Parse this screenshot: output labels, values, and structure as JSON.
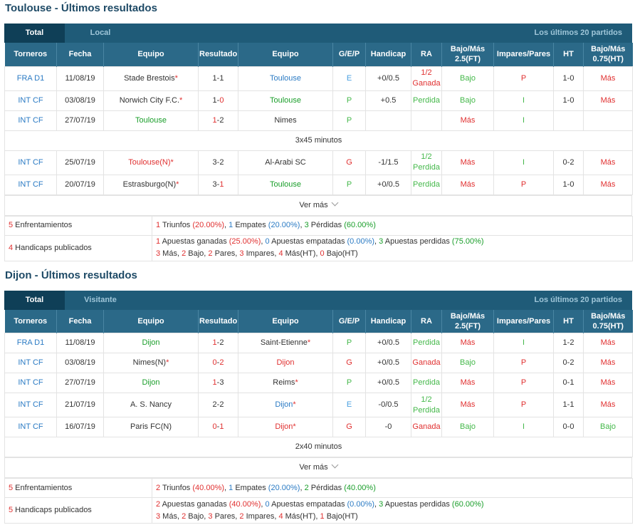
{
  "sections": [
    {
      "title": "Toulouse - Últimos resultados",
      "tab_total": "Total",
      "tab_other": "Local",
      "last_label": "Los últimos 20 partidos",
      "headers": [
        "Torneros",
        "Fecha",
        "Equipo",
        "Resultado",
        "Equipo",
        "G/E/P",
        "Handicap",
        "RA",
        "Bajo/Más 2.5(FT)",
        "Impares/Pares",
        "HT",
        "Bajo/Más 0.75(HT)"
      ],
      "more_label": "Ver más",
      "summary": {
        "enf_count": "5",
        "enf_label": " Enfrentamientos",
        "w": "1",
        "w_label": " Triunfos ",
        "w_pct": "(20.00%)",
        "d": "1",
        "d_label": " Empates ",
        "d_pct": "(20.00%)",
        "l": "3",
        "l_label": " Pérdidas ",
        "l_pct": "(60.00%)",
        "hc_count": "4",
        "hc_label": " Handicaps publicados",
        "aw": "1",
        "aw_label": " Apuestas ganadas ",
        "aw_pct": "(25.00%)",
        "ad": "0",
        "ad_label": " Apuestas empatadas ",
        "ad_pct": "(0.00%)",
        "al": "3",
        "al_label": " Apuestas perdidas ",
        "al_pct": "(75.00%)",
        "m": "3",
        "m_label": " Más, ",
        "b": "2",
        "b_label": " Bajo, ",
        "p": "2",
        "p_label": " Pares, ",
        "i": "3",
        "i_label": " Impares, ",
        "mht": "4",
        "mht_label": " Más(HT), ",
        "bht": "0",
        "bht_label": " Bajo(HT)"
      }
    },
    {
      "title": "Dijon - Últimos resultados",
      "tab_total": "Total",
      "tab_other": "Visitante",
      "last_label": "Los últimos 20 partidos",
      "headers": [
        "Torneros",
        "Fecha",
        "Equipo",
        "Resultado",
        "Equipo",
        "G/E/P",
        "Handicap",
        "RA",
        "Bajo/Más 2.5(FT)",
        "Impares/Pares",
        "HT",
        "Bajo/Más 0.75(HT)"
      ],
      "more_label": "Ver más",
      "summary": {
        "enf_count": "5",
        "enf_label": " Enfrentamientos",
        "w": "2",
        "w_label": " Triunfos ",
        "w_pct": "(40.00%)",
        "d": "1",
        "d_label": " Empates ",
        "d_pct": "(20.00%)",
        "l": "2",
        "l_label": " Pérdidas ",
        "l_pct": "(40.00%)",
        "hc_count": "5",
        "hc_label": " Handicaps publicados",
        "aw": "2",
        "aw_label": " Apuestas ganadas ",
        "aw_pct": "(40.00%)",
        "ad": "0",
        "ad_label": " Apuestas empatadas ",
        "ad_pct": "(0.00%)",
        "al": "3",
        "al_label": " Apuestas perdidas ",
        "al_pct": "(60.00%)",
        "m": "3",
        "m_label": " Más, ",
        "b": "2",
        "b_label": " Bajo, ",
        "p": "3",
        "p_label": " Pares, ",
        "i": "2",
        "i_label": " Impares, ",
        "mht": "4",
        "mht_label": " Más(HT), ",
        "bht": "1",
        "bht_label": " Bajo(HT)"
      }
    }
  ],
  "toulouse_rows": [
    {
      "league": "FRA D1",
      "date": "11/08/19",
      "home": "Stade Brestois",
      "score_h": "1",
      "score_a": "1",
      "away": "Toulouse",
      "gep": "E",
      "hc": "+0/0.5",
      "ra1": "1/2",
      "ra2": "Ganada",
      "ou": "Bajo",
      "op": "P",
      "ht": "1-0",
      "ouht": "Más"
    },
    {
      "league": "INT CF",
      "date": "03/08/19",
      "home": "Norwich City F.C.",
      "score_h": "1",
      "score_a": "0",
      "away": "Toulouse",
      "gep": "P",
      "hc": "+0.5",
      "ra1": "Perdida",
      "ou": "Bajo",
      "op": "I",
      "ht": "1-0",
      "ouht": "Más"
    },
    {
      "league": "INT CF",
      "date": "27/07/19",
      "home": "Toulouse",
      "score_h": "1",
      "score_a": "2",
      "away": "Nimes",
      "gep": "P",
      "hc": "",
      "ra1": "",
      "ou": "Más",
      "op": "I",
      "ht": "",
      "ouht": ""
    },
    {
      "note": "3x45 minutos"
    },
    {
      "league": "INT CF",
      "date": "25/07/19",
      "home": "Toulouse(N)",
      "score_h": "3",
      "score_a": "2",
      "away": "Al-Arabi SC",
      "gep": "G",
      "hc": "-1/1.5",
      "ra1": "1/2",
      "ra2": "Perdida",
      "ou": "Más",
      "op": "I",
      "ht": "0-2",
      "ouht": "Más"
    },
    {
      "league": "INT CF",
      "date": "20/07/19",
      "home": "Estrasburgo(N)",
      "score_h": "3",
      "score_a": "1",
      "away": "Toulouse",
      "gep": "P",
      "hc": "+0/0.5",
      "ra1": "Perdida",
      "ou": "Más",
      "op": "P",
      "ht": "1-0",
      "ouht": "Más"
    }
  ],
  "dijon_rows": [
    {
      "league": "FRA D1",
      "date": "11/08/19",
      "home": "Dijon",
      "score_h": "1",
      "score_a": "2",
      "away": "Saint-Etienne",
      "gep": "P",
      "hc": "+0/0.5",
      "ra1": "Perdida",
      "ou": "Más",
      "op": "I",
      "ht": "1-2",
      "ouht": "Más"
    },
    {
      "league": "INT CF",
      "date": "03/08/19",
      "home": "Nimes(N)",
      "score_h": "0",
      "score_a": "2",
      "away": "Dijon",
      "gep": "G",
      "hc": "+0/0.5",
      "ra1": "Ganada",
      "ou": "Bajo",
      "op": "P",
      "ht": "0-2",
      "ouht": "Más"
    },
    {
      "league": "INT CF",
      "date": "27/07/19",
      "home": "Dijon",
      "score_h": "1",
      "score_a": "3",
      "away": "Reims",
      "gep": "P",
      "hc": "+0/0.5",
      "ra1": "Perdida",
      "ou": "Más",
      "op": "P",
      "ht": "0-1",
      "ouht": "Más"
    },
    {
      "league": "INT CF",
      "date": "21/07/19",
      "home": "A. S. Nancy",
      "score_h": "2",
      "score_a": "2",
      "away": "Dijon",
      "gep": "E",
      "hc": "-0/0.5",
      "ra1": "1/2",
      "ra2": "Perdida",
      "ou": "Más",
      "op": "P",
      "ht": "1-1",
      "ouht": "Más"
    },
    {
      "league": "INT CF",
      "date": "16/07/19",
      "home": "Paris FC(N)",
      "score_h": "0",
      "score_a": "1",
      "away": "Dijon",
      "gep": "G",
      "hc": "-0",
      "ra1": "Ganada",
      "ou": "Bajo",
      "op": "I",
      "ht": "0-0",
      "ouht": "Bajo"
    },
    {
      "note": "2x40 minutos"
    }
  ],
  "colors": {
    "header_dark": "#1f5b78",
    "tab_active": "#0f3f57",
    "th_bg": "#2b6988",
    "win": "#1a9e2a",
    "loss": "#e03030",
    "draw": "#2b7bc4"
  }
}
